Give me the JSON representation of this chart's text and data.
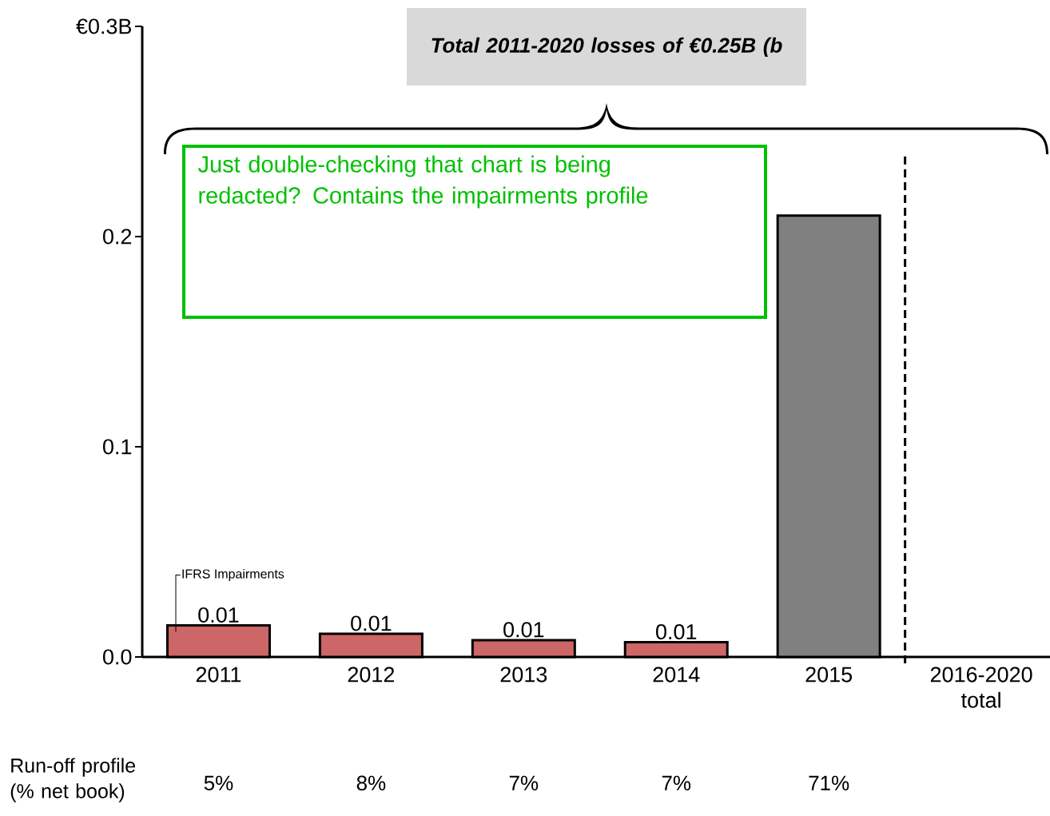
{
  "chart_data": {
    "type": "bar",
    "title": "Total 2011-2020 losses of €0.25B (b",
    "categories": [
      "2011",
      "2012",
      "2013",
      "2014",
      "2015",
      "2016-2020 total"
    ],
    "values": [
      0.015,
      0.011,
      0.008,
      0.007,
      0.21,
      null
    ],
    "colors": [
      "#cd6666",
      "#cd6666",
      "#cd6666",
      "#cd6666",
      "#808080",
      null
    ],
    "value_labels": [
      "0.01",
      "0.01",
      "0.01",
      "0.01",
      null,
      null
    ],
    "ylim": [
      0,
      0.3
    ],
    "yticks": [
      {
        "value": 0,
        "label": "0.0"
      },
      0.1,
      0.2,
      {
        "value": 0.3,
        "label": "€0.3B"
      }
    ],
    "annotations": [
      "Just double-checking that chart is being redacted? Contains the impairments profile",
      "IFRS Impairments",
      "Run-off profile (% net book)",
      "5%",
      "8%",
      "7%",
      "7%",
      "71%"
    ]
  }
}
